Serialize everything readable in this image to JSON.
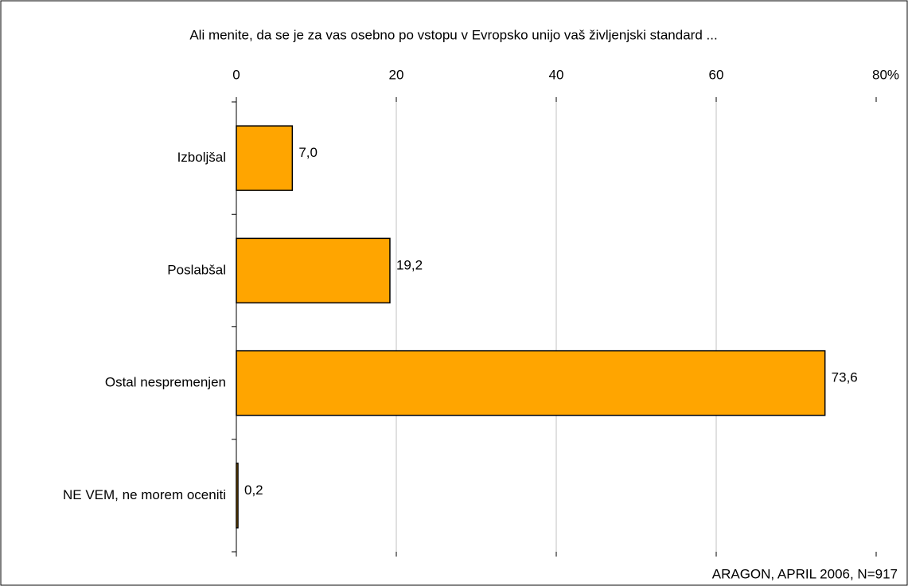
{
  "chart_data": {
    "type": "bar",
    "orientation": "horizontal",
    "title": "Ali menite, da se je za vas osebno po vstopu v Evropsko unijo vaš življenjski standard ...",
    "categories": [
      "Izboljšal",
      "Poslabšal",
      "Ostal nespremenjen",
      "NE VEM, ne morem oceniti"
    ],
    "values": [
      7.0,
      19.2,
      73.6,
      0.2
    ],
    "value_labels": [
      "7,0",
      "19,2",
      "73,6",
      "0,2"
    ],
    "color": "#ffa500",
    "xlim": [
      0,
      80
    ],
    "xticks": [
      0,
      20,
      40,
      60,
      {
        "value": 80,
        "label": "80%"
      }
    ],
    "grid": true,
    "source": "ARAGON, APRIL 2006, N=917"
  }
}
